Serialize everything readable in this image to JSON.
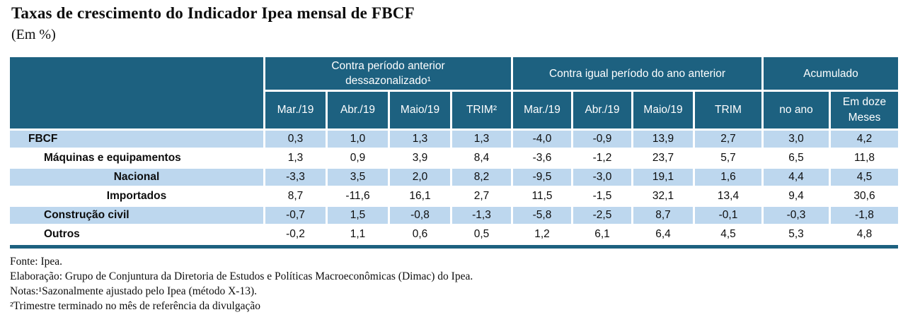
{
  "title": "Taxas de crescimento do Indicador Ipea mensal de FBCF",
  "subtitle": "(Em %)",
  "colors": {
    "header_teal": "#1D6180",
    "shaded_row_blue": "#BDD7EE"
  },
  "table": {
    "groups": [
      {
        "label": "Contra período anterior dessazonalizado¹",
        "span": 4
      },
      {
        "label": "Contra igual período do ano anterior",
        "span": 4
      },
      {
        "label": "Acumulado",
        "span": 2
      }
    ],
    "columns": [
      "Mar./19",
      "Abr./19",
      "Maio/19",
      "TRIM²",
      "Mar./19",
      "Abr./19",
      "Maio/19",
      "TRIM",
      "no ano",
      "Em doze Meses"
    ],
    "rows": [
      {
        "label": "FBCF",
        "indent": 1,
        "shaded": true,
        "values": [
          "0,3",
          "1,0",
          "1,3",
          "1,3",
          "-4,0",
          "-0,9",
          "13,9",
          "2,7",
          "3,0",
          "4,2"
        ]
      },
      {
        "label": "Máquinas e equipamentos",
        "indent": 2,
        "shaded": false,
        "values": [
          "1,3",
          "0,9",
          "3,9",
          "8,4",
          "-3,6",
          "-1,2",
          "23,7",
          "5,7",
          "6,5",
          "11,8"
        ]
      },
      {
        "label": "Nacional",
        "indent": 3,
        "shaded": true,
        "values": [
          "-3,3",
          "3,5",
          "2,0",
          "8,2",
          "-9,5",
          "-3,0",
          "19,1",
          "1,6",
          "4,4",
          "4,5"
        ]
      },
      {
        "label": "Importados",
        "indent": 3,
        "shaded": false,
        "values": [
          "8,7",
          "-11,6",
          "16,1",
          "2,7",
          "11,5",
          "-1,5",
          "32,1",
          "13,4",
          "9,4",
          "30,6"
        ]
      },
      {
        "label": "Construção civil",
        "indent": 2,
        "shaded": true,
        "values": [
          "-0,7",
          "1,5",
          "-0,8",
          "-1,3",
          "-5,8",
          "-2,5",
          "8,7",
          "-0,1",
          "-0,3",
          "-1,8"
        ]
      },
      {
        "label": "Outros",
        "indent": 2,
        "shaded": false,
        "values": [
          "-0,2",
          "1,1",
          "0,6",
          "0,5",
          "1,2",
          "6,1",
          "6,4",
          "4,5",
          "5,3",
          "4,8"
        ]
      }
    ]
  },
  "notes": [
    "Fonte: Ipea.",
    "Elaboração: Grupo de Conjuntura da Diretoria de Estudos e Políticas Macroeconômicas (Dimac) do Ipea.",
    "Notas:¹Sazonalmente ajustado pelo Ipea (método X-13).",
    "²Trimestre terminado no mês de referência da divulgação"
  ]
}
